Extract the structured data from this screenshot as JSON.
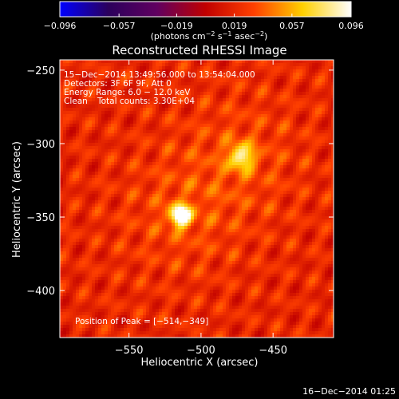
{
  "chart_data": {
    "type": "heatmap",
    "title": "Reconstructed RHESSI Image",
    "xlabel": "Heliocentric X (arcsec)",
    "ylabel": "Heliocentric Y (arcsec)",
    "xlim": [
      -598,
      -408
    ],
    "ylim": [
      -432,
      -243
    ],
    "x_ticks": [
      {
        "value": -550,
        "label": "−550"
      },
      {
        "value": -500,
        "label": "−500"
      },
      {
        "value": -450,
        "label": "−450"
      }
    ],
    "y_ticks": [
      {
        "value": -250,
        "label": "−250"
      },
      {
        "value": -300,
        "label": "−300"
      },
      {
        "value": -350,
        "label": "−350"
      },
      {
        "value": -400,
        "label": "−400"
      }
    ],
    "colorbar": {
      "min": -0.096,
      "max": 0.096,
      "ticks": [
        {
          "value": -0.096,
          "label": "−0.096"
        },
        {
          "value": -0.057,
          "label": "−0.057"
        },
        {
          "value": -0.019,
          "label": "−0.019"
        },
        {
          "value": 0.019,
          "label": "0.019"
        },
        {
          "value": 0.057,
          "label": "0.057"
        },
        {
          "value": 0.096,
          "label": "0.096"
        }
      ],
      "unit_main": "(photons cm",
      "unit_exp1": "−2",
      "unit_mid": " s",
      "unit_exp2": "−1",
      "unit_end": " asec",
      "unit_exp3": "−2",
      "unit_close": ")",
      "colormap": [
        "#0000ff",
        "#2b005c",
        "#600060",
        "#c00000",
        "#ff4000",
        "#ffd000",
        "#ffffff"
      ]
    },
    "annotations": {
      "time_range": "15−Dec−2014 13:49:56.000 to 13:54:04.000",
      "detectors": "Detectors: 3F 6F 9F, Att 0",
      "energy": "Energy Range: 6.0 − 12.0 keV",
      "clean_label": "Clean",
      "total_counts": "Total counts: 3.30E+04",
      "peak": "Position of Peak = [−514,−349]"
    },
    "sources": [
      {
        "name": "primary",
        "x": -514,
        "y": -349,
        "sigma": 5,
        "amplitude": 0.096
      },
      {
        "name": "secondary",
        "x": -472,
        "y": -309,
        "sigma": 6,
        "amplitude": 0.058
      }
    ],
    "background_level": 0.02
  },
  "footer": {
    "timestamp": "16−Dec−2014 01:25"
  }
}
